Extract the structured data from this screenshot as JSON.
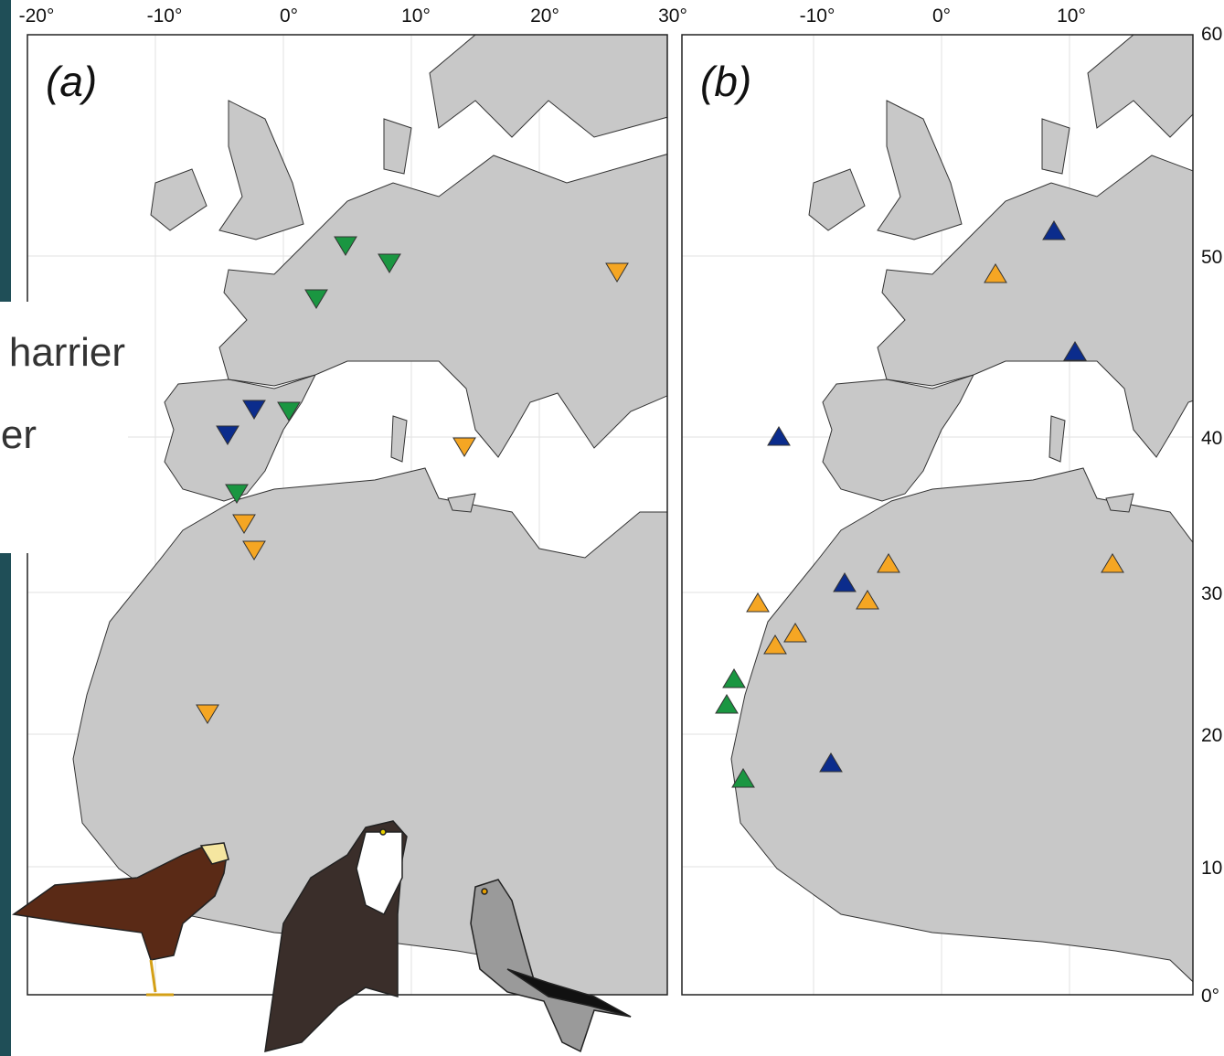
{
  "panels": [
    {
      "label": "(a)",
      "top_ticks": [
        "-20°",
        "-10°",
        "0°",
        "10°",
        "20°",
        "30°"
      ]
    },
    {
      "label": "(b)",
      "top_ticks": [
        "-10°",
        "0°",
        "10°"
      ],
      "right_ticks": [
        "60",
        "50",
        "40",
        "30",
        "20",
        "10",
        "0°"
      ]
    }
  ],
  "overlay": {
    "lines": [
      "harrier",
      "er"
    ]
  }
}
